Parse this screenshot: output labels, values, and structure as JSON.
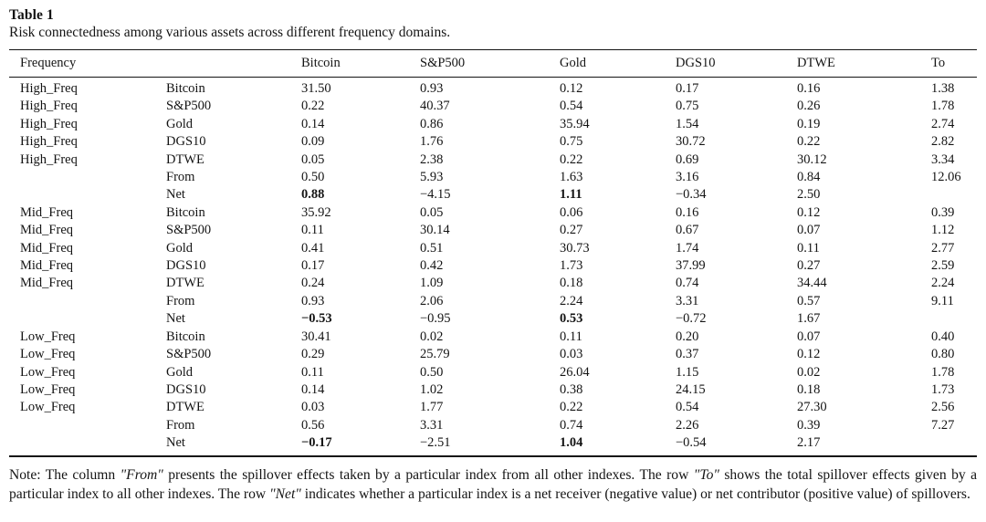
{
  "accent_colors": {
    "text": "#141414",
    "background": "#ffffff",
    "rule": "#141414"
  },
  "table": {
    "title": "Table 1",
    "caption": "Risk connectedness among various assets across different frequency domains.",
    "columns": [
      "Frequency",
      "",
      "Bitcoin",
      "S&P500",
      "Gold",
      "DGS10",
      "DTWE",
      "To"
    ],
    "rows": [
      {
        "frequency": "High_Freq",
        "asset": "Bitcoin",
        "values": [
          "31.50",
          "0.93",
          "0.12",
          "0.17",
          "0.16",
          "1.38"
        ],
        "bold": []
      },
      {
        "frequency": "High_Freq",
        "asset": "S&P500",
        "values": [
          "0.22",
          "40.37",
          "0.54",
          "0.75",
          "0.26",
          "1.78"
        ],
        "bold": []
      },
      {
        "frequency": "High_Freq",
        "asset": "Gold",
        "values": [
          "0.14",
          "0.86",
          "35.94",
          "1.54",
          "0.19",
          "2.74"
        ],
        "bold": []
      },
      {
        "frequency": "High_Freq",
        "asset": "DGS10",
        "values": [
          "0.09",
          "1.76",
          "0.75",
          "30.72",
          "0.22",
          "2.82"
        ],
        "bold": []
      },
      {
        "frequency": "High_Freq",
        "asset": "DTWE",
        "values": [
          "0.05",
          "2.38",
          "0.22",
          "0.69",
          "30.12",
          "3.34"
        ],
        "bold": []
      },
      {
        "frequency": "",
        "asset": "From",
        "values": [
          "0.50",
          "5.93",
          "1.63",
          "3.16",
          "0.84",
          "12.06"
        ],
        "bold": []
      },
      {
        "frequency": "",
        "asset": "Net",
        "values": [
          "0.88",
          "−4.15",
          "1.11",
          "−0.34",
          "2.50",
          ""
        ],
        "bold": [
          0,
          2
        ]
      },
      {
        "frequency": "Mid_Freq",
        "asset": "Bitcoin",
        "values": [
          "35.92",
          "0.05",
          "0.06",
          "0.16",
          "0.12",
          "0.39"
        ],
        "bold": []
      },
      {
        "frequency": "Mid_Freq",
        "asset": "S&P500",
        "values": [
          "0.11",
          "30.14",
          "0.27",
          "0.67",
          "0.07",
          "1.12"
        ],
        "bold": []
      },
      {
        "frequency": "Mid_Freq",
        "asset": "Gold",
        "values": [
          "0.41",
          "0.51",
          "30.73",
          "1.74",
          "0.11",
          "2.77"
        ],
        "bold": []
      },
      {
        "frequency": "Mid_Freq",
        "asset": "DGS10",
        "values": [
          "0.17",
          "0.42",
          "1.73",
          "37.99",
          "0.27",
          "2.59"
        ],
        "bold": []
      },
      {
        "frequency": "Mid_Freq",
        "asset": "DTWE",
        "values": [
          "0.24",
          "1.09",
          "0.18",
          "0.74",
          "34.44",
          "2.24"
        ],
        "bold": []
      },
      {
        "frequency": "",
        "asset": "From",
        "values": [
          "0.93",
          "2.06",
          "2.24",
          "3.31",
          "0.57",
          "9.11"
        ],
        "bold": []
      },
      {
        "frequency": "",
        "asset": "Net",
        "values": [
          "−0.53",
          "−0.95",
          "0.53",
          "−0.72",
          "1.67",
          ""
        ],
        "bold": [
          0,
          2
        ]
      },
      {
        "frequency": "Low_Freq",
        "asset": "Bitcoin",
        "values": [
          "30.41",
          "0.02",
          "0.11",
          "0.20",
          "0.07",
          "0.40"
        ],
        "bold": []
      },
      {
        "frequency": "Low_Freq",
        "asset": "S&P500",
        "values": [
          "0.29",
          "25.79",
          "0.03",
          "0.37",
          "0.12",
          "0.80"
        ],
        "bold": []
      },
      {
        "frequency": "Low_Freq",
        "asset": "Gold",
        "values": [
          "0.11",
          "0.50",
          "26.04",
          "1.15",
          "0.02",
          "1.78"
        ],
        "bold": []
      },
      {
        "frequency": "Low_Freq",
        "asset": "DGS10",
        "values": [
          "0.14",
          "1.02",
          "0.38",
          "24.15",
          "0.18",
          "1.73"
        ],
        "bold": []
      },
      {
        "frequency": "Low_Freq",
        "asset": "DTWE",
        "values": [
          "0.03",
          "1.77",
          "0.22",
          "0.54",
          "27.30",
          "2.56"
        ],
        "bold": []
      },
      {
        "frequency": "",
        "asset": "From",
        "values": [
          "0.56",
          "3.31",
          "0.74",
          "2.26",
          "0.39",
          "7.27"
        ],
        "bold": []
      },
      {
        "frequency": "",
        "asset": "Net",
        "values": [
          "−0.17",
          "−2.51",
          "1.04",
          "−0.54",
          "2.17",
          ""
        ],
        "bold": [
          0,
          2
        ]
      }
    ]
  },
  "note": {
    "segments": [
      {
        "text": "Note: The column ",
        "italic": false
      },
      {
        "text": "\"From\"",
        "italic": true
      },
      {
        "text": " presents the spillover effects taken by a particular index from all other indexes. The row ",
        "italic": false
      },
      {
        "text": "\"To\"",
        "italic": true
      },
      {
        "text": " shows the total spillover effects given by a particular index to all other indexes. The row ",
        "italic": false
      },
      {
        "text": "\"Net\"",
        "italic": true
      },
      {
        "text": " indicates whether a particular index is a net receiver (negative value) or net contributor (positive value) of spillovers.",
        "italic": false
      }
    ]
  }
}
